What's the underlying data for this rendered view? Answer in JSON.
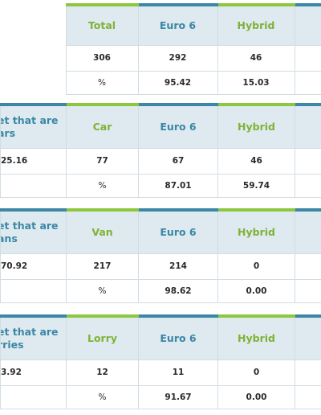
{
  "tables": [
    {
      "label_lines": [],
      "label_value": "",
      "headers": [
        "Total",
        "Euro 6",
        "Hybrid"
      ],
      "counts": [
        "306",
        "292",
        "46"
      ],
      "pct_label": "%",
      "pcts": [
        "95.42",
        "15.03"
      ]
    },
    {
      "label_lines": [
        "et that are",
        "ars"
      ],
      "label_value": "25.16",
      "headers": [
        "Car",
        "Euro 6",
        "Hybrid"
      ],
      "counts": [
        "77",
        "67",
        "46"
      ],
      "pct_label": "%",
      "pcts": [
        "87.01",
        "59.74"
      ]
    },
    {
      "label_lines": [
        "et that are",
        "ans"
      ],
      "label_value": "70.92",
      "headers": [
        "Van",
        "Euro 6",
        "Hybrid"
      ],
      "counts": [
        "217",
        "214",
        "0"
      ],
      "pct_label": "%",
      "pcts": [
        "98.62",
        "0.00"
      ]
    },
    {
      "label_lines": [
        "et that are",
        "rries"
      ],
      "label_value": "3.92",
      "headers": [
        "Lorry",
        "Euro 6",
        "Hybrid"
      ],
      "counts": [
        "12",
        "11",
        "0"
      ],
      "pct_label": "%",
      "pcts": [
        "91.67",
        "0.00"
      ]
    }
  ]
}
